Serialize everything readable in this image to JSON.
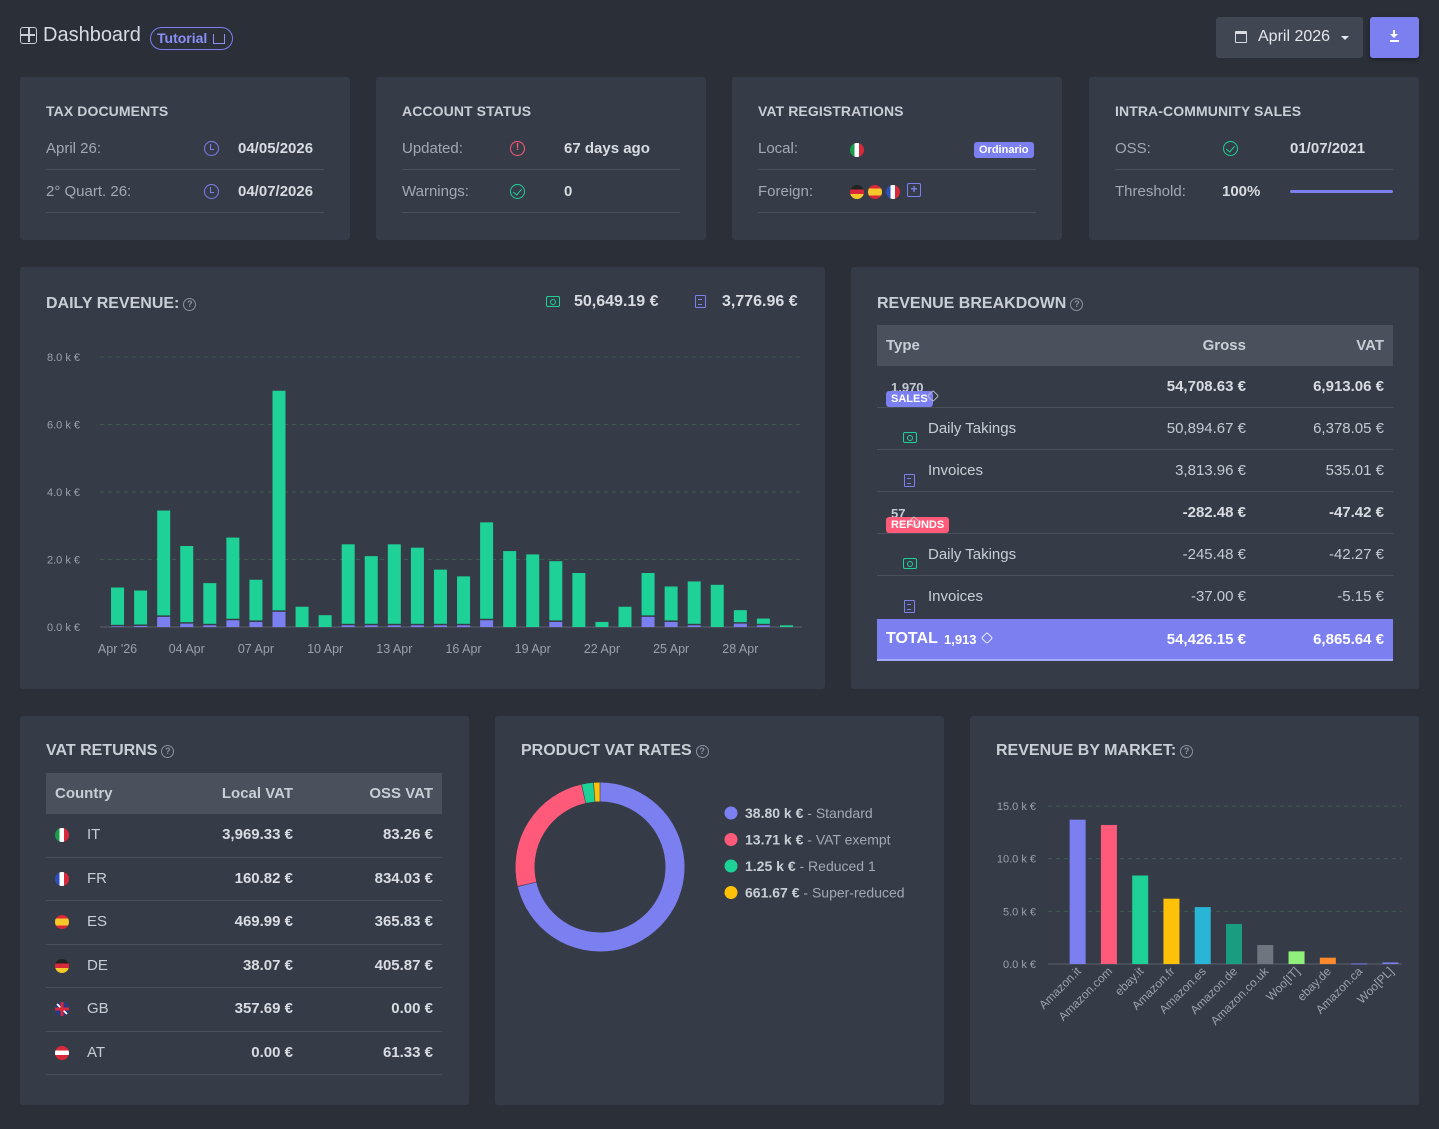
{
  "header": {
    "title": "Dashboard",
    "tutorial_label": "Tutorial",
    "period_label": "April 2026"
  },
  "tax_documents": {
    "title": "TAX DOCUMENTS",
    "rows": [
      {
        "label": "April 26:",
        "value": "04/05/2026"
      },
      {
        "label": "2° Quart. 26:",
        "value": "04/07/2026"
      }
    ]
  },
  "account_status": {
    "title": "ACCOUNT STATUS",
    "updated_label": "Updated:",
    "updated_value": "67 days ago",
    "warnings_label": "Warnings:",
    "warnings_value": "0"
  },
  "vat_registrations": {
    "title": "VAT REGISTRATIONS",
    "local_label": "Local:",
    "local_badge": "Ordinario",
    "foreign_label": "Foreign:"
  },
  "intra_community": {
    "title": "INTRA-COMMUNITY SALES",
    "oss_label": "OSS:",
    "oss_value": "01/07/2021",
    "threshold_label": "Threshold:",
    "threshold_value": "100%",
    "threshold_fraction": 1.0
  },
  "daily_revenue": {
    "title": "DAILY REVENUE:",
    "takings_total": "50,649.19 €",
    "invoices_total": "3,776.96 €"
  },
  "revenue_breakdown": {
    "title": "REVENUE BREAKDOWN",
    "headers": {
      "type": "Type",
      "gross": "Gross",
      "vat": "VAT"
    },
    "sales": {
      "badge": "SALES",
      "count": "1,970",
      "gross": "54,708.63 €",
      "vat": "6,913.06 €"
    },
    "sales_takings": {
      "label": "Daily Takings",
      "gross": "50,894.67 €",
      "vat": "6,378.05 €"
    },
    "sales_invoices": {
      "label": "Invoices",
      "gross": "3,813.96 €",
      "vat": "535.01 €"
    },
    "refunds": {
      "badge": "REFUNDS",
      "count": "57",
      "gross": "-282.48 €",
      "vat": "-47.42 €"
    },
    "refunds_takings": {
      "label": "Daily Takings",
      "gross": "-245.48 €",
      "vat": "-42.27 €"
    },
    "refunds_invoices": {
      "label": "Invoices",
      "gross": "-37.00 €",
      "vat": "-5.15 €"
    },
    "total": {
      "label": "TOTAL",
      "count": "1,913",
      "gross": "54,426.15 €",
      "vat": "6,865.64 €"
    }
  },
  "vat_returns": {
    "title": "VAT RETURNS",
    "headers": {
      "country": "Country",
      "local": "Local VAT",
      "oss": "OSS VAT"
    },
    "rows": [
      {
        "code": "IT",
        "local": "3,969.33 €",
        "oss": "83.26 €"
      },
      {
        "code": "FR",
        "local": "160.82 €",
        "oss": "834.03 €"
      },
      {
        "code": "ES",
        "local": "469.99 €",
        "oss": "365.83 €"
      },
      {
        "code": "DE",
        "local": "38.07 €",
        "oss": "405.87 €"
      },
      {
        "code": "GB",
        "local": "357.69 €",
        "oss": "0.00 €"
      },
      {
        "code": "AT",
        "local": "0.00 €",
        "oss": "61.33 €"
      }
    ]
  },
  "product_vat_rates": {
    "title": "PRODUCT VAT RATES"
  },
  "revenue_by_market": {
    "title": "REVENUE BY MARKET:"
  },
  "colors": {
    "accent": "#7b7ff0",
    "green": "#1dd197",
    "pink": "#ff5a7a",
    "yellow": "#ffc107"
  },
  "chart_data": [
    {
      "type": "bar",
      "stacked": true,
      "x": [
        "Apr '26",
        "02 Apr",
        "03 Apr",
        "04 Apr",
        "05 Apr",
        "06 Apr",
        "07 Apr",
        "08 Apr",
        "09 Apr",
        "10 Apr",
        "11 Apr",
        "12 Apr",
        "13 Apr",
        "14 Apr",
        "15 Apr",
        "16 Apr",
        "17 Apr",
        "18 Apr",
        "19 Apr",
        "20 Apr",
        "21 Apr",
        "22 Apr",
        "23 Apr",
        "24 Apr",
        "25 Apr",
        "26 Apr",
        "27 Apr",
        "28 Apr",
        "29 Apr",
        "30 Apr"
      ],
      "tick_labels": [
        "Apr '26",
        "04 Apr",
        "07 Apr",
        "10 Apr",
        "13 Apr",
        "16 Apr",
        "19 Apr",
        "22 Apr",
        "25 Apr",
        "28 Apr"
      ],
      "series": [
        {
          "color": "#7b7ff0",
          "values": [
            20,
            30,
            300,
            100,
            50,
            200,
            150,
            450,
            0,
            0,
            50,
            50,
            50,
            50,
            50,
            50,
            200,
            0,
            0,
            150,
            0,
            0,
            0,
            300,
            150,
            50,
            0,
            100,
            50,
            0
          ]
        },
        {
          "color": "#1dd197",
          "values": [
            1150,
            1050,
            3150,
            2300,
            1250,
            2450,
            1250,
            6550,
            600,
            350,
            2400,
            2050,
            2400,
            2300,
            1650,
            1450,
            2900,
            2250,
            2150,
            1800,
            1600,
            150,
            600,
            1300,
            1050,
            1300,
            1250,
            400,
            200,
            50
          ]
        }
      ],
      "yticks": [
        "0.0 k €",
        "2.0 k €",
        "4.0 k €",
        "6.0 k €",
        "8.0 k €"
      ],
      "ylim": [
        0,
        8000
      ],
      "grid": true
    },
    {
      "type": "pie",
      "donut": true,
      "labels": [
        "Standard",
        "VAT exempt",
        "Reduced 1",
        "Super-reduced"
      ],
      "values": [
        38800,
        13710,
        1250,
        661.67
      ],
      "value_labels": [
        "38.80 k €",
        "13.71 k €",
        "1.25 k €",
        "661.67 €"
      ],
      "colors": [
        "#7b7ff0",
        "#ff5a7a",
        "#1dd197",
        "#ffc107"
      ]
    },
    {
      "type": "bar",
      "categories": [
        "Amazon.it",
        "Amazon.com",
        "ebay.it",
        "Amazon.fr",
        "Amazon.es",
        "Amazon.de",
        "Amazon.co.uk",
        "Woo[IT]",
        "ebay.de",
        "Amazon.ca",
        "Woo[PL]"
      ],
      "values": [
        13700,
        13200,
        8400,
        6200,
        5400,
        3800,
        1800,
        1200,
        600,
        50,
        150
      ],
      "colors": [
        "#7b7ff0",
        "#ff5a7a",
        "#1dd197",
        "#ffc107",
        "#29b6d6",
        "#1a9c80",
        "#6f757e",
        "#8ff07a",
        "#ff8a2b",
        "#7b7ff0",
        "#7b7ff0"
      ],
      "yticks": [
        "0.0 k €",
        "5.0 k €",
        "10.0 k €",
        "15.0 k €"
      ],
      "ylim": [
        0,
        15000
      ],
      "grid": true
    }
  ]
}
